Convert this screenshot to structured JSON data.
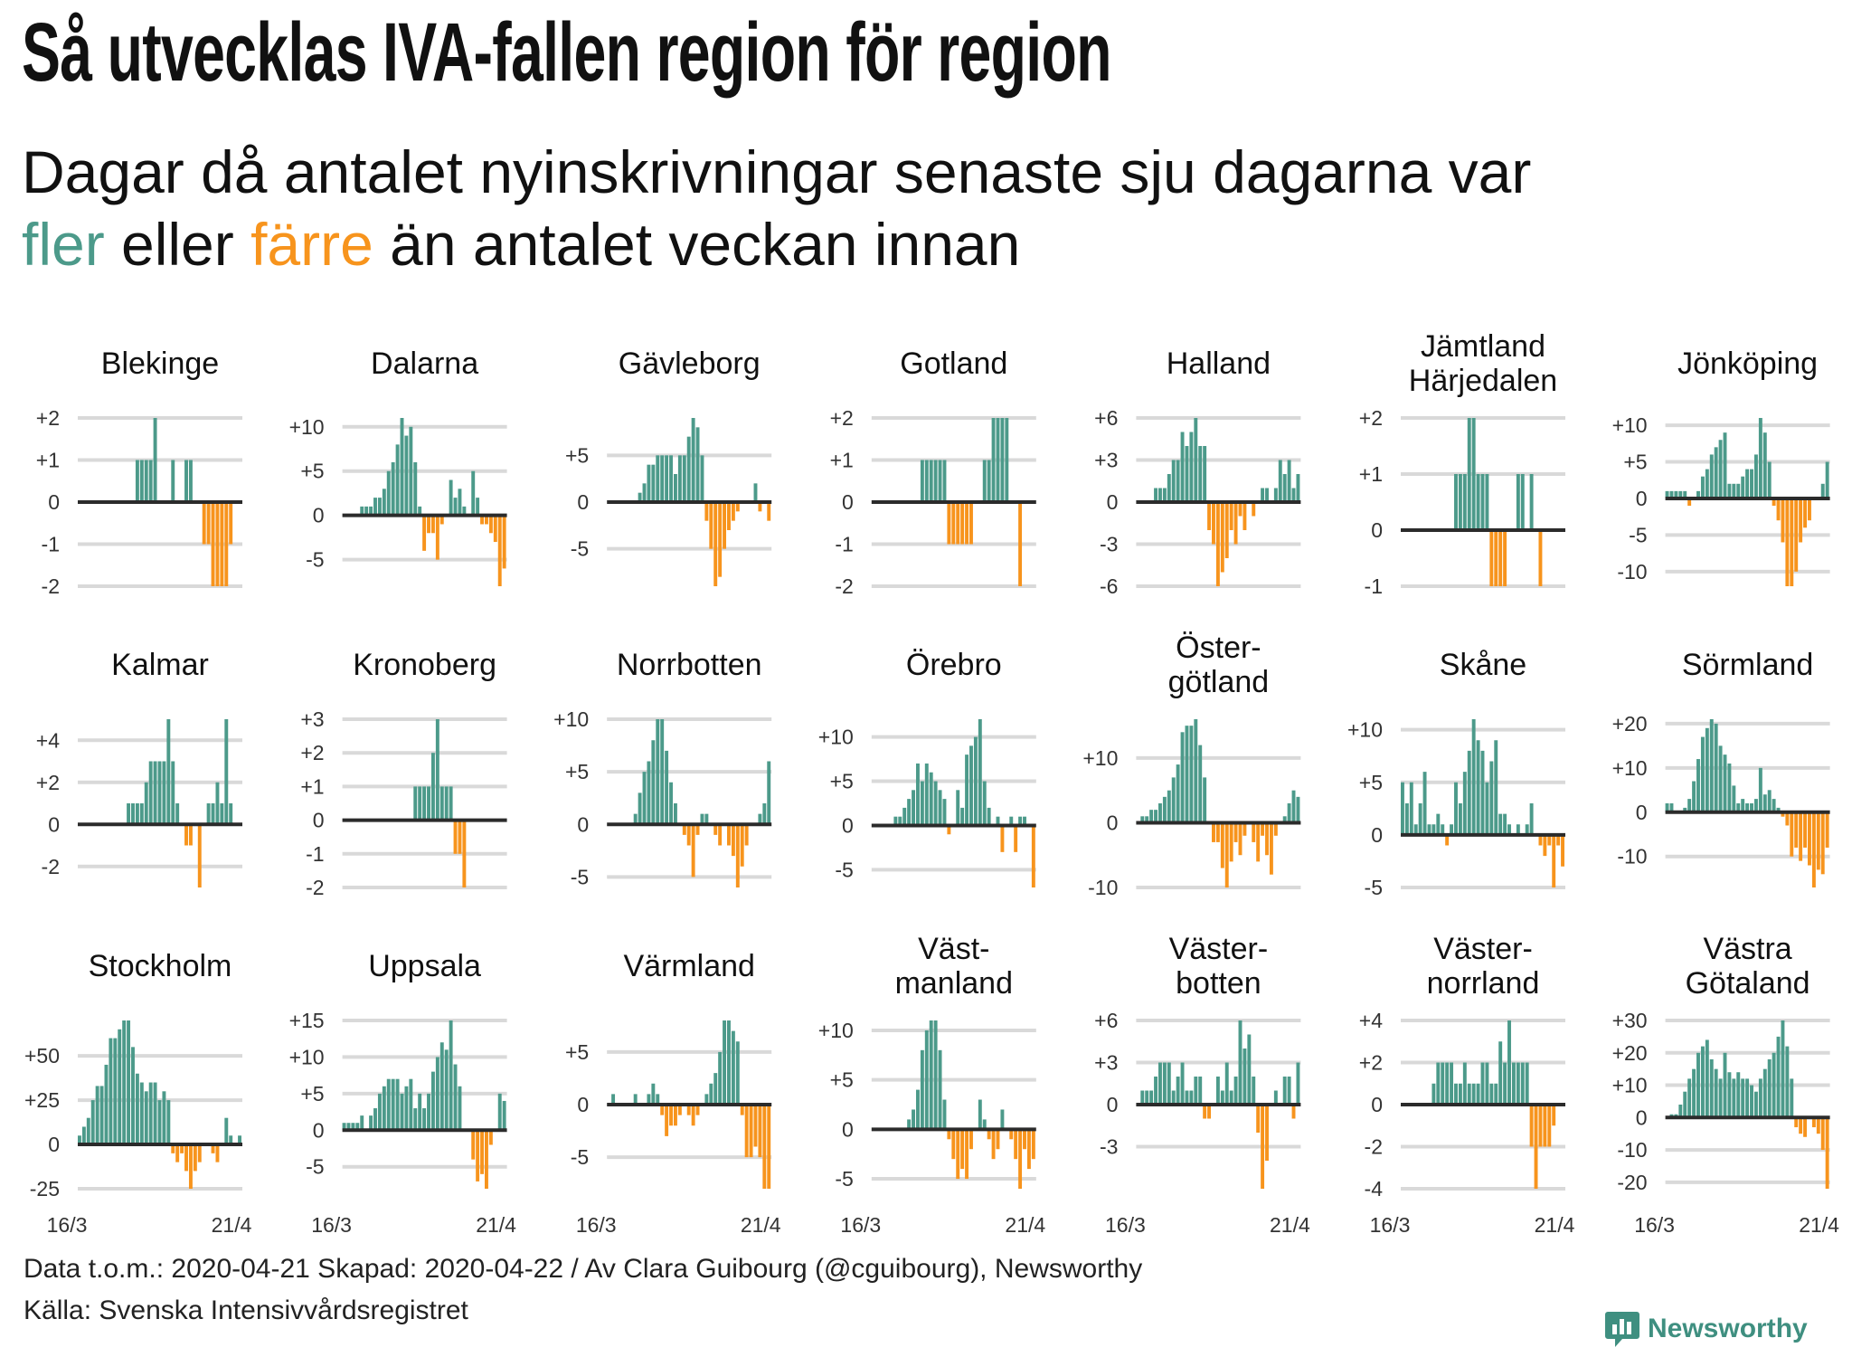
{
  "title": "Så utvecklas IVA-fallen region för region",
  "subtitle": {
    "line1": "Dagar då antalet nyinskrivningar senaste sju dagarna var",
    "more": "fler",
    "eller": " eller ",
    "fewer": "färre",
    "rest": " än antalet veckan innan"
  },
  "footer": {
    "data_line": "Data t.o.m.: 2020-04-21 Skapad: 2020-04-22 / Av Clara Guibourg (@cguibourg), Newsworthy",
    "source_line": "Källa: Svenska Intensivvårdsregistret",
    "logo": "Newsworthy"
  },
  "colors": {
    "more": "#4c9a8a",
    "fewer": "#f7941d",
    "zero": "#2b2b2b",
    "grid": "#d9d9d9",
    "logo": "#3f8f80"
  },
  "chart_data": {
    "type": "bar",
    "layout": "small-multiples",
    "x_start": "16/3",
    "x_end": "21/4",
    "x_labels": [
      "16/3",
      "21/4"
    ],
    "panels": [
      {
        "name": [
          "Blekinge"
        ],
        "ticks": [
          2,
          1,
          0,
          -1,
          -2
        ],
        "values": [
          0,
          0,
          0,
          0,
          0,
          0,
          0,
          0,
          0,
          0,
          0,
          0,
          0,
          1,
          1,
          1,
          1,
          2,
          0,
          0,
          0,
          1,
          0,
          0,
          1,
          1,
          0,
          0,
          -1,
          -1,
          -2,
          -2,
          -2,
          -2,
          -1,
          0,
          0
        ]
      },
      {
        "name": [
          "Dalarna"
        ],
        "ticks": [
          10,
          5,
          0,
          -5
        ],
        "values": [
          0,
          0,
          0,
          0,
          1,
          1,
          1,
          2,
          2,
          3,
          5,
          6,
          8,
          11,
          9,
          10,
          6,
          1,
          -4,
          -2,
          -2,
          -5,
          -1,
          0,
          4,
          2,
          3,
          1,
          0,
          5,
          2,
          -1,
          -1,
          -2,
          -3,
          -8,
          -6
        ]
      },
      {
        "name": [
          "Gävleborg"
        ],
        "ticks": [
          5,
          0,
          -5
        ],
        "values": [
          0,
          0,
          0,
          0,
          0,
          0,
          0,
          1,
          2,
          4,
          4,
          5,
          5,
          5,
          5,
          3,
          5,
          5,
          7,
          9,
          8,
          5,
          -2,
          -5,
          -9,
          -8,
          -5,
          -3,
          -2,
          -1,
          0,
          0,
          0,
          2,
          -1,
          0,
          -2
        ]
      },
      {
        "name": [
          "Gotland"
        ],
        "ticks": [
          2,
          1,
          0,
          -1,
          -2
        ],
        "values": [
          0,
          0,
          0,
          0,
          0,
          0,
          0,
          0,
          0,
          0,
          0,
          1,
          1,
          1,
          1,
          1,
          1,
          -1,
          -1,
          -1,
          -1,
          -1,
          -1,
          0,
          0,
          1,
          1,
          2,
          2,
          2,
          2,
          0,
          0,
          -2,
          0,
          0,
          0
        ]
      },
      {
        "name": [
          "Halland"
        ],
        "ticks": [
          6,
          3,
          0,
          -3,
          -6
        ],
        "values": [
          0,
          0,
          0,
          0,
          1,
          1,
          1,
          2,
          3,
          3,
          5,
          4,
          5,
          6,
          4,
          4,
          -2,
          -3,
          -6,
          -5,
          -4,
          -2,
          -3,
          -1,
          -2,
          0,
          -1,
          0,
          1,
          1,
          0,
          1,
          3,
          2,
          3,
          1,
          2
        ]
      },
      {
        "name": [
          "Jämtland",
          "Härjedalen"
        ],
        "ticks": [
          2,
          1,
          0,
          -1
        ],
        "values": [
          0,
          0,
          0,
          0,
          0,
          0,
          0,
          0,
          0,
          0,
          0,
          0,
          1,
          1,
          1,
          2,
          2,
          1,
          1,
          1,
          -1,
          -1,
          -1,
          -1,
          0,
          0,
          1,
          1,
          0,
          1,
          0,
          -1,
          0,
          0,
          0,
          0,
          0
        ]
      },
      {
        "name": [
          "Jönköping"
        ],
        "ticks": [
          10,
          5,
          0,
          -5,
          -10
        ],
        "values": [
          1,
          1,
          1,
          1,
          1,
          -1,
          0,
          1,
          3,
          4,
          6,
          7,
          8,
          9,
          2,
          2,
          2,
          3,
          4,
          4,
          6,
          11,
          9,
          5,
          -1,
          -3,
          -6,
          -12,
          -12,
          -10,
          -6,
          -4,
          -3,
          0,
          0,
          2,
          5
        ]
      },
      {
        "name": [
          "Kalmar"
        ],
        "ticks": [
          4,
          2,
          0,
          -2
        ],
        "values": [
          0,
          0,
          0,
          0,
          0,
          0,
          0,
          0,
          0,
          0,
          0,
          1,
          1,
          1,
          1,
          2,
          3,
          3,
          3,
          3,
          5,
          3,
          1,
          0,
          -1,
          -1,
          0,
          -3,
          0,
          1,
          1,
          2,
          1,
          5,
          1,
          0,
          0
        ]
      },
      {
        "name": [
          "Kronoberg"
        ],
        "ticks": [
          3,
          2,
          1,
          0,
          -1,
          -2
        ],
        "values": [
          0,
          0,
          0,
          0,
          0,
          0,
          0,
          0,
          0,
          0,
          0,
          0,
          0,
          0,
          0,
          0,
          1,
          1,
          1,
          1,
          2,
          3,
          1,
          1,
          1,
          -1,
          -1,
          -2,
          0,
          0,
          0,
          0,
          0,
          0,
          0,
          0,
          0
        ]
      },
      {
        "name": [
          "Norrbotten"
        ],
        "ticks": [
          10,
          5,
          0,
          -5
        ],
        "values": [
          0,
          0,
          0,
          0,
          0,
          0,
          1,
          3,
          5,
          6,
          8,
          10,
          10,
          7,
          4,
          2,
          0,
          -1,
          -2,
          -5,
          -1,
          1,
          1,
          0,
          -1,
          -2,
          0,
          -2,
          -3,
          -6,
          -4,
          -2,
          0,
          0,
          1,
          2,
          6
        ]
      },
      {
        "name": [
          "Örebro"
        ],
        "ticks": [
          10,
          5,
          0,
          -5
        ],
        "values": [
          0,
          0,
          0,
          0,
          0,
          1,
          1,
          2,
          3,
          4,
          7,
          5,
          7,
          6,
          5,
          4,
          3,
          -1,
          0,
          4,
          2,
          8,
          9,
          10,
          12,
          5,
          2,
          0,
          1,
          -3,
          0,
          1,
          -3,
          1,
          1,
          0,
          -7
        ]
      },
      {
        "name": [
          "Öster-",
          "götland"
        ],
        "ticks": [
          10,
          0,
          -10
        ],
        "values": [
          0,
          1,
          1,
          2,
          2,
          3,
          4,
          5,
          7,
          9,
          14,
          15,
          15,
          16,
          12,
          7,
          0,
          -3,
          -3,
          -7,
          -10,
          -6,
          -3,
          -5,
          -2,
          0,
          -3,
          -6,
          -2,
          -5,
          -8,
          -2,
          0,
          1,
          3,
          5,
          4
        ]
      },
      {
        "name": [
          "Skåne"
        ],
        "ticks": [
          10,
          5,
          0,
          -5
        ],
        "values": [
          5,
          3,
          5,
          1,
          3,
          6,
          1,
          1,
          2,
          1,
          -1,
          1,
          5,
          3,
          6,
          8,
          11,
          9,
          8,
          5,
          7,
          9,
          2,
          2,
          1,
          0,
          1,
          0,
          1,
          3,
          0,
          -1,
          -2,
          -1,
          -5,
          -1,
          -3
        ]
      },
      {
        "name": [
          "Sörmland"
        ],
        "ticks": [
          20,
          10,
          0,
          -10
        ],
        "values": [
          2,
          2,
          0,
          0,
          1,
          3,
          7,
          12,
          17,
          19,
          21,
          20,
          15,
          13,
          11,
          6,
          2,
          3,
          2,
          2,
          3,
          10,
          4,
          5,
          3,
          1,
          -1,
          -3,
          -10,
          -8,
          -11,
          -8,
          -12,
          -17,
          -13,
          -14,
          -8
        ]
      },
      {
        "name": [
          "Stockholm"
        ],
        "ticks": [
          50,
          25,
          0,
          -25
        ],
        "values": [
          5,
          10,
          15,
          25,
          33,
          33,
          45,
          60,
          60,
          65,
          70,
          70,
          55,
          40,
          35,
          30,
          35,
          35,
          25,
          30,
          25,
          -5,
          -10,
          -5,
          -15,
          -25,
          -15,
          -10,
          0,
          0,
          -5,
          -10,
          0,
          15,
          5,
          0,
          5
        ]
      },
      {
        "name": [
          "Uppsala"
        ],
        "ticks": [
          15,
          10,
          5,
          0,
          -5
        ],
        "values": [
          1,
          1,
          1,
          1,
          2,
          0,
          2,
          3,
          5,
          6,
          7,
          7,
          7,
          5,
          6,
          7,
          3,
          5,
          3,
          5,
          8,
          10,
          12,
          11,
          15,
          9,
          6,
          0,
          0,
          -4,
          -7,
          -6,
          -8,
          -2,
          0,
          5,
          4
        ]
      },
      {
        "name": [
          "Värmland"
        ],
        "ticks": [
          5,
          0,
          -5
        ],
        "values": [
          0,
          1,
          0,
          0,
          0,
          0,
          1,
          0,
          0,
          1,
          2,
          1,
          -1,
          -3,
          -2,
          -2,
          -1,
          0,
          -1,
          -2,
          -1,
          0,
          1,
          2,
          3,
          5,
          8,
          8,
          7,
          6,
          -1,
          -5,
          -5,
          -4,
          -5,
          -8,
          -8
        ]
      },
      {
        "name": [
          "Väst-",
          "manland"
        ],
        "ticks": [
          10,
          5,
          0,
          -5
        ],
        "values": [
          0,
          0,
          0,
          0,
          0,
          0,
          0,
          0,
          1,
          2,
          4,
          8,
          10,
          11,
          11,
          8,
          3,
          -1,
          -3,
          -5,
          -4,
          -5,
          -2,
          0,
          3,
          1,
          -1,
          -3,
          -2,
          2,
          0,
          -1,
          -3,
          -6,
          -2,
          -4,
          -3
        ]
      },
      {
        "name": [
          "Väster-",
          "botten"
        ],
        "ticks": [
          6,
          3,
          0,
          -3
        ],
        "values": [
          0,
          1,
          1,
          1,
          2,
          3,
          3,
          3,
          1,
          2,
          3,
          1,
          1,
          2,
          2,
          -1,
          -1,
          0,
          2,
          1,
          3,
          1,
          2,
          6,
          4,
          5,
          2,
          -2,
          -6,
          -4,
          0,
          1,
          0,
          2,
          2,
          -1,
          3
        ]
      },
      {
        "name": [
          "Väster-",
          "norrland"
        ],
        "ticks": [
          4,
          2,
          0,
          -2,
          -4
        ],
        "values": [
          0,
          0,
          0,
          0,
          0,
          0,
          0,
          1,
          2,
          2,
          2,
          2,
          1,
          1,
          2,
          1,
          1,
          1,
          2,
          2,
          1,
          1,
          3,
          2,
          4,
          2,
          2,
          2,
          2,
          -2,
          -4,
          -2,
          -2,
          -2,
          -1,
          0,
          0
        ]
      },
      {
        "name": [
          "Västra",
          "Götaland"
        ],
        "ticks": [
          30,
          20,
          10,
          0,
          -10,
          -20
        ],
        "values": [
          0,
          1,
          1,
          4,
          8,
          12,
          15,
          20,
          22,
          24,
          18,
          15,
          12,
          20,
          14,
          12,
          14,
          12,
          12,
          10,
          8,
          12,
          15,
          18,
          20,
          25,
          30,
          22,
          12,
          -3,
          -5,
          -6,
          0,
          -3,
          -5,
          -10,
          -22
        ]
      }
    ]
  }
}
